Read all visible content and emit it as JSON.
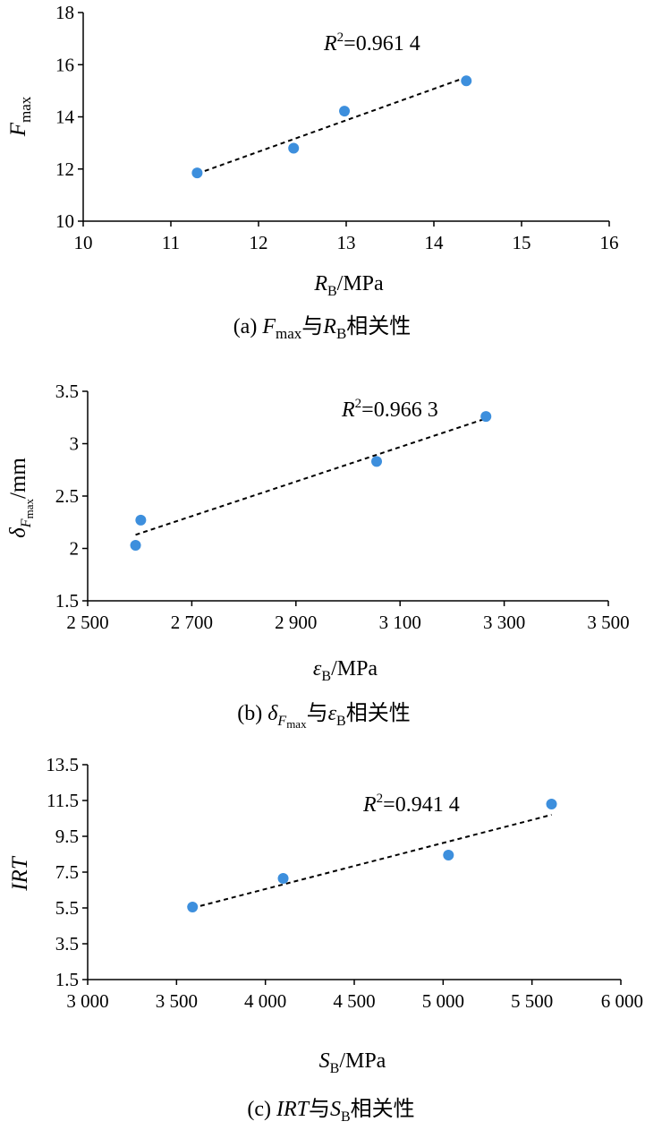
{
  "chart_data": [
    {
      "type": "scatter",
      "id": "a",
      "x": [
        11.3,
        12.4,
        12.98,
        14.37
      ],
      "y": [
        11.85,
        12.8,
        14.22,
        15.38
      ],
      "trendline": {
        "x": [
          11.3,
          14.37
        ],
        "y": [
          11.82,
          15.52
        ]
      },
      "xlim": [
        10,
        16
      ],
      "ylim": [
        10,
        18
      ],
      "xticks": [
        10,
        11,
        12,
        13,
        14,
        15,
        16
      ],
      "yticks": [
        10,
        12,
        14,
        16,
        18
      ],
      "xtick_labels": [
        "10",
        "11",
        "12",
        "13",
        "14",
        "15",
        "16"
      ],
      "ytick_labels": [
        "10",
        "12",
        "14",
        "16",
        "18"
      ],
      "r2_label": {
        "sym": "R",
        "sup": "2",
        "value": "=0.961 4"
      },
      "ylabel": {
        "main": "F",
        "sub": "max"
      },
      "xlabel": {
        "main": "R",
        "sub": "B",
        "rest": "/MPa"
      },
      "caption": {
        "prefix": "(a) ",
        "main1": "F",
        "sub1": "max",
        "mid": "与",
        "main2": "R",
        "sub2": "B",
        "suffix": "相关性"
      },
      "marker_color": "#3d8fdd"
    },
    {
      "type": "scatter",
      "id": "b",
      "x": [
        2592,
        2602,
        3055,
        3265
      ],
      "y": [
        2.03,
        2.27,
        2.83,
        3.26
      ],
      "trendline": {
        "x": [
          2592,
          3265
        ],
        "y": [
          2.13,
          3.24
        ]
      },
      "xlim": [
        2500,
        3500
      ],
      "ylim": [
        1.5,
        3.5
      ],
      "xticks": [
        2500,
        2700,
        2900,
        3100,
        3300,
        3500
      ],
      "yticks": [
        1.5,
        2,
        2.5,
        3,
        3.5
      ],
      "xtick_labels": [
        "2 500",
        "2 700",
        "2 900",
        "3 100",
        "3 300",
        "3 500"
      ],
      "ytick_labels": [
        "1.5",
        "2",
        "2.5",
        "3",
        "3.5"
      ],
      "r2_label": {
        "sym": "R",
        "sup": "2",
        "value": "=0.966 3"
      },
      "ylabel": {
        "main": "δ",
        "sub": "F",
        "subsub": "max",
        "rest": "/mm"
      },
      "xlabel": {
        "main": "ε",
        "sub": "B",
        "rest": "/MPa"
      },
      "caption": {
        "prefix": "(b) ",
        "main1": "δ",
        "sub1": "F",
        "subsub1": "max",
        "mid": "与",
        "main2": "ε",
        "sub2": "B",
        "suffix": "相关性"
      },
      "marker_color": "#3d8fdd"
    },
    {
      "type": "scatter",
      "id": "c",
      "x": [
        3590,
        4100,
        5030,
        5610
      ],
      "y": [
        5.55,
        7.15,
        8.45,
        11.3
      ],
      "trendline": {
        "x": [
          3590,
          5610
        ],
        "y": [
          5.5,
          10.7
        ]
      },
      "xlim": [
        3000,
        6000
      ],
      "ylim": [
        1.5,
        13.5
      ],
      "xticks": [
        3000,
        3500,
        4000,
        4500,
        5000,
        5500,
        6000
      ],
      "yticks": [
        1.5,
        3.5,
        5.5,
        7.5,
        9.5,
        11.5,
        13.5
      ],
      "xtick_labels": [
        "3 000",
        "3 500",
        "4 000",
        "4 500",
        "5 000",
        "5 500",
        "6 000"
      ],
      "ytick_labels": [
        "1.5",
        "3.5",
        "5.5",
        "7.5",
        "9.5",
        "11.5",
        "13.5"
      ],
      "r2_label": {
        "sym": "R",
        "sup": "2",
        "value": "=0.941 4"
      },
      "ylabel": {
        "main": "IRT"
      },
      "xlabel": {
        "main": "S",
        "sub": "B",
        "rest": "/MPa"
      },
      "caption": {
        "prefix": "(c) ",
        "main1": "IRT",
        "mid": "与",
        "main2": "S",
        "sub2": "B",
        "suffix": "相关性"
      },
      "marker_color": "#3d8fdd"
    }
  ]
}
